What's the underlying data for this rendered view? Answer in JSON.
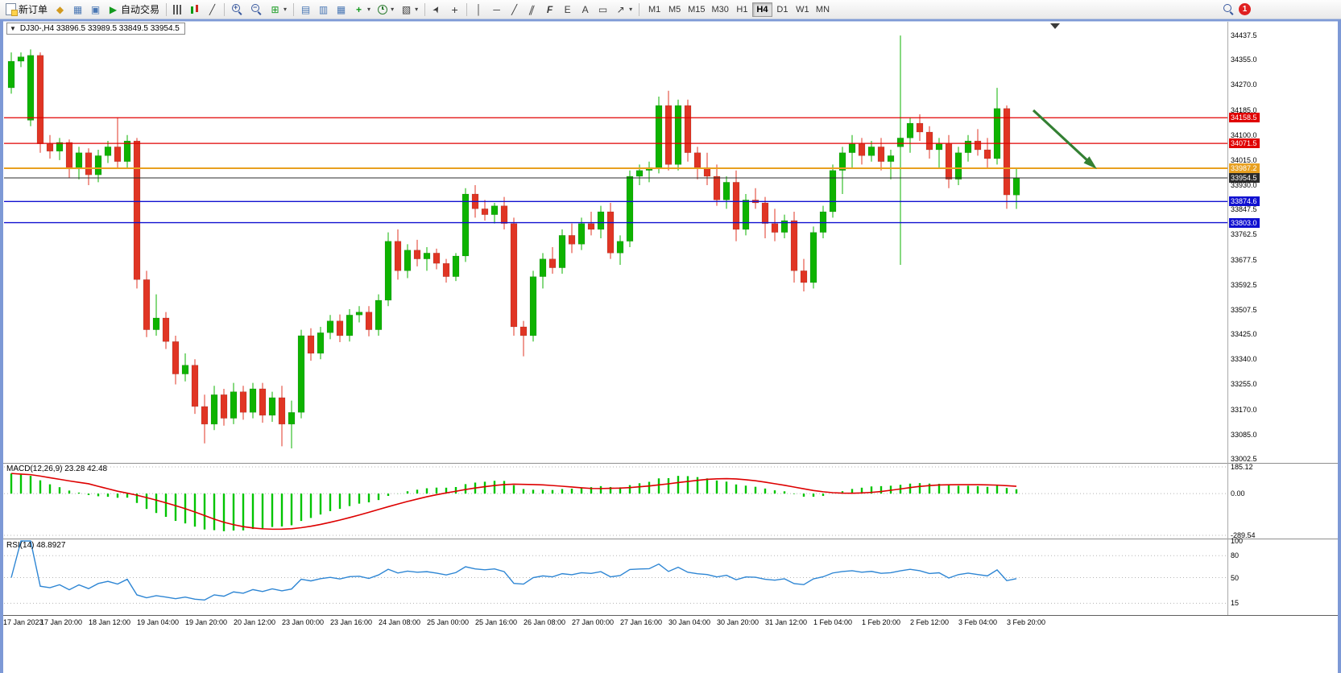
{
  "toolbar": {
    "new_order": {
      "label": "新订单"
    },
    "autotrading": {
      "label": "自动交易"
    },
    "timeframes": {
      "items": [
        "M1",
        "M5",
        "M15",
        "M30",
        "H1",
        "H4",
        "D1",
        "W1",
        "MN"
      ],
      "active": "H4"
    },
    "notification": {
      "count": "1"
    }
  },
  "icons": {
    "market_watch": "◆",
    "data_window": "▦",
    "terminal": "▣",
    "play": "▶",
    "line_chart": "╱",
    "tile": "⊞",
    "win_cascade": "▤",
    "win_tile_h": "▥",
    "win_tile_v": "▦",
    "add_indicator": "+",
    "templates": "▧",
    "cursor": "➤",
    "crosshair": "+",
    "vline": "│",
    "hline": "─",
    "trendline": "╱",
    "channel": "∥",
    "fibonacci": "F",
    "elliott": "E",
    "text": "A",
    "label": "▭",
    "arrows": "↗",
    "caret": "▾",
    "down_triangle": "▼",
    "zoom_plus": "+",
    "zoom_minus": "−"
  },
  "chart": {
    "title": "DJ30-,H4 33896.5 33989.5 33849.5 33954.5",
    "symbol": "DJ30-",
    "period": "H4",
    "ohlc": {
      "open": "33896.5",
      "high": "33989.5",
      "low": "33849.5",
      "close": "33954.5"
    }
  },
  "macd": {
    "label": "MACD(12,26,9) 23.28 42.48",
    "axis_labels": [
      "185.12",
      "0.00",
      "-289.54"
    ],
    "max": 185.12,
    "min": -289.54,
    "params": {
      "fast": 12,
      "slow": 26,
      "signal": 9
    },
    "histogram_color": "#00c400",
    "signal_color": "#dd0000"
  },
  "rsi": {
    "label": "RSI(14) 48.8927",
    "axis_labels": [
      "100",
      "80",
      "50",
      "15"
    ],
    "levels": [
      80,
      50,
      15
    ],
    "period": 14,
    "line_color": "#2e86d4"
  },
  "chart_data": {
    "type": "candlestick",
    "title": "DJ30-,H4",
    "symbol": "DJ30-",
    "timeframe": "H4",
    "up_color": "#0eb300",
    "down_color": "#e03524",
    "arrow_color": "#338033",
    "price_min": 33002.5,
    "price_max": 34437.5,
    "price_axis_labels": [
      "34437.5",
      "34355.0",
      "34270.0",
      "34185.0",
      "34100.0",
      "34015.0",
      "33930.0",
      "33847.5",
      "33762.5",
      "33677.5",
      "33592.5",
      "33507.5",
      "33425.0",
      "33340.0",
      "33255.0",
      "33170.0",
      "33085.0",
      "33002.5"
    ],
    "time_labels": [
      "17 Jan 2023",
      "17 Jan 20:00",
      "18 Jan 12:00",
      "19 Jan 04:00",
      "19 Jan 20:00",
      "20 Jan 12:00",
      "23 Jan 00:00",
      "23 Jan 16:00",
      "24 Jan 08:00",
      "25 Jan 00:00",
      "25 Jan 16:00",
      "26 Jan 08:00",
      "27 Jan 00:00",
      "27 Jan 16:00",
      "30 Jan 04:00",
      "30 Jan 20:00",
      "31 Jan 12:00",
      "1 Feb 04:00",
      "1 Feb 20:00",
      "2 Feb 12:00",
      "3 Feb 04:00",
      "3 Feb 20:00"
    ],
    "hlines": [
      {
        "price": 34158.5,
        "color": "#e00000",
        "label": "34158.5",
        "width": 1.3,
        "role": "resistance-line"
      },
      {
        "price": 34071.5,
        "color": "#e00000",
        "label": "34071.5",
        "width": 1.3,
        "role": "resistance-line"
      },
      {
        "price": 33987.2,
        "color": "#e8a020",
        "label": "33987.2",
        "width": 2,
        "role": "pivot-line"
      },
      {
        "price": 33954.5,
        "color": "#2b2b2b",
        "label": "33954.5",
        "width": 1,
        "role": "current-price-line"
      },
      {
        "price": 33874.6,
        "color": "#1010d0",
        "label": "33874.6",
        "width": 1.3,
        "role": "support-line"
      },
      {
        "price": 33803.0,
        "color": "#1010d0",
        "label": "33803.0",
        "width": 1.3,
        "role": "support-line"
      }
    ],
    "indicators": [
      "MACD(12,26,9)",
      "RSI(14)"
    ],
    "candles": [
      [
        34260,
        34380,
        34240,
        34350
      ],
      [
        34350,
        34380,
        34330,
        34365
      ],
      [
        34150,
        34390,
        34130,
        34370
      ],
      [
        34370,
        34380,
        34040,
        34070
      ],
      [
        34070,
        34100,
        34020,
        34045
      ],
      [
        34045,
        34090,
        34015,
        34075
      ],
      [
        34075,
        34085,
        33955,
        33985
      ],
      [
        33985,
        34060,
        33950,
        34040
      ],
      [
        34040,
        34055,
        33930,
        33965
      ],
      [
        33965,
        34050,
        33940,
        34030
      ],
      [
        34030,
        34080,
        34005,
        34060
      ],
      [
        34060,
        34160,
        33990,
        34010
      ],
      [
        34010,
        34100,
        33985,
        34080
      ],
      [
        34080,
        34090,
        33580,
        33610
      ],
      [
        33610,
        33640,
        33415,
        33440
      ],
      [
        33440,
        33560,
        33420,
        33480
      ],
      [
        33480,
        33500,
        33375,
        33400
      ],
      [
        33400,
        33420,
        33255,
        33290
      ],
      [
        33290,
        33360,
        33265,
        33320
      ],
      [
        33320,
        33340,
        33155,
        33180
      ],
      [
        33180,
        33220,
        33055,
        33120
      ],
      [
        33120,
        33250,
        33100,
        33220
      ],
      [
        33220,
        33240,
        33115,
        33140
      ],
      [
        33140,
        33260,
        33120,
        33230
      ],
      [
        33230,
        33250,
        33135,
        33160
      ],
      [
        33160,
        33260,
        33140,
        33240
      ],
      [
        33240,
        33260,
        33125,
        33150
      ],
      [
        33150,
        33230,
        33128,
        33210
      ],
      [
        33210,
        33250,
        33045,
        33120
      ],
      [
        33120,
        33200,
        33038,
        33160
      ],
      [
        33160,
        33440,
        33140,
        33420
      ],
      [
        33420,
        33445,
        33335,
        33360
      ],
      [
        33360,
        33450,
        33340,
        33430
      ],
      [
        33430,
        33490,
        33408,
        33470
      ],
      [
        33470,
        33492,
        33398,
        33420
      ],
      [
        33420,
        33510,
        33400,
        33490
      ],
      [
        33490,
        33520,
        33465,
        33500
      ],
      [
        33500,
        33520,
        33418,
        33440
      ],
      [
        33440,
        33560,
        33420,
        33540
      ],
      [
        33540,
        33770,
        33520,
        33740
      ],
      [
        33740,
        33780,
        33610,
        33640
      ],
      [
        33640,
        33730,
        33615,
        33710
      ],
      [
        33710,
        33745,
        33655,
        33680
      ],
      [
        33680,
        33720,
        33640,
        33700
      ],
      [
        33700,
        33715,
        33645,
        33665
      ],
      [
        33665,
        33680,
        33600,
        33620
      ],
      [
        33620,
        33700,
        33605,
        33690
      ],
      [
        33690,
        33920,
        33670,
        33900
      ],
      [
        33900,
        33930,
        33820,
        33850
      ],
      [
        33850,
        33880,
        33810,
        33830
      ],
      [
        33830,
        33870,
        33800,
        33860
      ],
      [
        33860,
        33890,
        33780,
        33800
      ],
      [
        33800,
        33820,
        33420,
        33450
      ],
      [
        33450,
        33470,
        33350,
        33420
      ],
      [
        33420,
        33640,
        33400,
        33620
      ],
      [
        33620,
        33700,
        33580,
        33680
      ],
      [
        33680,
        33720,
        33630,
        33650
      ],
      [
        33650,
        33780,
        33630,
        33760
      ],
      [
        33760,
        33800,
        33700,
        33730
      ],
      [
        33730,
        33820,
        33710,
        33800
      ],
      [
        33800,
        33840,
        33760,
        33780
      ],
      [
        33780,
        33860,
        33750,
        33840
      ],
      [
        33840,
        33870,
        33680,
        33700
      ],
      [
        33700,
        33760,
        33660,
        33740
      ],
      [
        33740,
        33980,
        33720,
        33960
      ],
      [
        33960,
        34000,
        33930,
        33980
      ],
      [
        33980,
        34010,
        33940,
        33990
      ],
      [
        33990,
        34230,
        33970,
        34200
      ],
      [
        34200,
        34250,
        33980,
        34000
      ],
      [
        34000,
        34220,
        33980,
        34200
      ],
      [
        34200,
        34220,
        34010,
        34040
      ],
      [
        34040,
        34060,
        33950,
        33990
      ],
      [
        33990,
        34040,
        33930,
        33960
      ],
      [
        33960,
        34000,
        33860,
        33880
      ],
      [
        33880,
        33960,
        33850,
        33940
      ],
      [
        33940,
        33980,
        33740,
        33780
      ],
      [
        33780,
        33900,
        33760,
        33880
      ],
      [
        33880,
        33920,
        33850,
        33870
      ],
      [
        33870,
        33890,
        33750,
        33800
      ],
      [
        33800,
        33850,
        33740,
        33770
      ],
      [
        33770,
        33830,
        33750,
        33810
      ],
      [
        33810,
        33840,
        33600,
        33640
      ],
      [
        33640,
        33680,
        33570,
        33600
      ],
      [
        33600,
        33790,
        33580,
        33770
      ],
      [
        33770,
        33860,
        33750,
        33840
      ],
      [
        33840,
        34000,
        33820,
        33980
      ],
      [
        33980,
        34060,
        33900,
        34040
      ],
      [
        34040,
        34100,
        33990,
        34070
      ],
      [
        34070,
        34090,
        34000,
        34030
      ],
      [
        34030,
        34080,
        34010,
        34060
      ],
      [
        34060,
        34090,
        33980,
        34010
      ],
      [
        34010,
        34050,
        33950,
        34030
      ],
      [
        34060,
        34437,
        33660,
        34090
      ],
      [
        34090,
        34160,
        34040,
        34140
      ],
      [
        34140,
        34170,
        34080,
        34110
      ],
      [
        34110,
        34130,
        34020,
        34050
      ],
      [
        34050,
        34090,
        33990,
        34070
      ],
      [
        34070,
        34100,
        33920,
        33950
      ],
      [
        33950,
        34060,
        33930,
        34040
      ],
      [
        34040,
        34100,
        34010,
        34080
      ],
      [
        34080,
        34120,
        34030,
        34050
      ],
      [
        34050,
        34090,
        33990,
        34020
      ],
      [
        34020,
        34260,
        34000,
        34190
      ],
      [
        34190,
        34200,
        33850,
        33897
      ],
      [
        33896.5,
        33989.5,
        33849.5,
        33954.5
      ]
    ]
  }
}
